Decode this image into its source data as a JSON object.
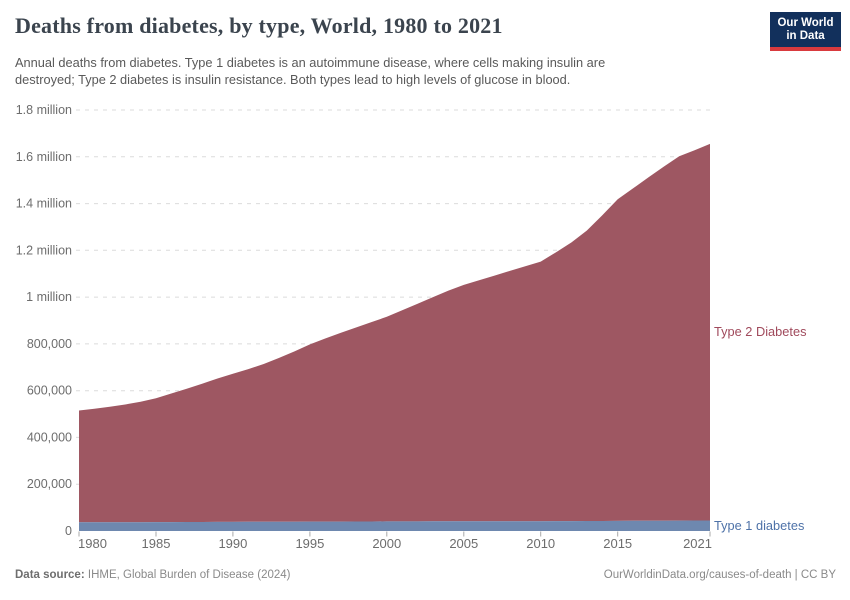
{
  "header": {
    "title": "Deaths from diabetes, by type, World, 1980 to 2021",
    "subtitle_line1": "Annual deaths from diabetes. Type 1 diabetes is an autoimmune disease, where cells making insulin are",
    "subtitle_line2": "destroyed; Type 2 diabetes is insulin resistance. Both types lead to high levels of glucose in blood.",
    "logo": {
      "line1": "Our World",
      "line2": "in Data",
      "bg_color": "#12305c",
      "stripe_color": "#d93a3e"
    }
  },
  "footer": {
    "source_label": "Data source:",
    "source_value": "IHME, Global Burden of Disease (2024)",
    "right_text": "OurWorldinData.org/causes-of-death | CC BY"
  },
  "chart_data": {
    "type": "area",
    "stacked": true,
    "title": "Deaths from diabetes, by type, World, 1980 to 2021",
    "xlabel": "",
    "ylabel": "",
    "grid": "dashed-horizontal",
    "legend_position": "right-edge-labels",
    "ylim": [
      0,
      1800000
    ],
    "x": [
      1980,
      1981,
      1982,
      1983,
      1984,
      1985,
      1986,
      1987,
      1988,
      1989,
      1990,
      1991,
      1992,
      1993,
      1994,
      1995,
      1996,
      1997,
      1998,
      1999,
      2000,
      2001,
      2002,
      2003,
      2004,
      2005,
      2006,
      2007,
      2008,
      2009,
      2010,
      2011,
      2012,
      2013,
      2014,
      2015,
      2016,
      2017,
      2018,
      2019,
      2020,
      2021
    ],
    "series": [
      {
        "name": "Type 1 diabetes",
        "color": "#6e88af",
        "label_color": "#4e72a8",
        "values": [
          37000,
          37200,
          37400,
          37600,
          37800,
          38000,
          38200,
          38400,
          38600,
          38800,
          39000,
          39200,
          39400,
          39600,
          39800,
          40000,
          40200,
          40400,
          40600,
          40800,
          41000,
          41100,
          41200,
          41300,
          41400,
          41500,
          41600,
          41700,
          41800,
          41900,
          42000,
          42200,
          42400,
          42600,
          42800,
          43000,
          43400,
          43800,
          44200,
          44600,
          44800,
          45000
        ]
      },
      {
        "name": "Type 2 Diabetes",
        "color": "#9e5762",
        "label_color": "#a04a5c",
        "values": [
          478000,
          485800,
          493600,
          503400,
          515200,
          530000,
          549800,
          569600,
          591400,
          613200,
          633000,
          652800,
          674600,
          700400,
          728200,
          758000,
          782800,
          806600,
          829400,
          852200,
          875000,
          902900,
          930800,
          958700,
          986600,
          1010500,
          1030400,
          1050300,
          1070200,
          1090100,
          1110000,
          1149800,
          1191600,
          1242400,
          1307200,
          1375000,
          1421600,
          1468200,
          1513800,
          1557400,
          1583200,
          1610000
        ]
      }
    ],
    "y_ticks": [
      {
        "value": 0,
        "label": "0"
      },
      {
        "value": 200000,
        "label": "200,000"
      },
      {
        "value": 400000,
        "label": "400,000"
      },
      {
        "value": 600000,
        "label": "600,000"
      },
      {
        "value": 800000,
        "label": "800,000"
      },
      {
        "value": 1000000,
        "label": "1 million"
      },
      {
        "value": 1200000,
        "label": "1.2 million"
      },
      {
        "value": 1400000,
        "label": "1.4 million"
      },
      {
        "value": 1600000,
        "label": "1.6 million"
      },
      {
        "value": 1800000,
        "label": "1.8 million"
      }
    ],
    "x_ticks": [
      {
        "value": 1980,
        "label": "1980"
      },
      {
        "value": 1985,
        "label": "1985"
      },
      {
        "value": 1990,
        "label": "1990"
      },
      {
        "value": 1995,
        "label": "1995"
      },
      {
        "value": 2000,
        "label": "2000"
      },
      {
        "value": 2005,
        "label": "2005"
      },
      {
        "value": 2010,
        "label": "2010"
      },
      {
        "value": 2015,
        "label": "2015"
      },
      {
        "value": 2021,
        "label": "2021"
      }
    ],
    "axis_text_color": "#6d6d6d",
    "gridline_color": "#dbdbdb",
    "tick_color": "#a8a8a8"
  }
}
